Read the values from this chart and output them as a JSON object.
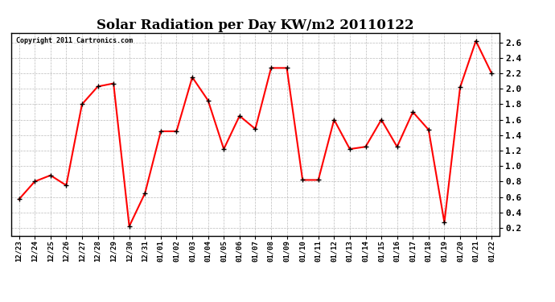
{
  "dates": [
    "12/23",
    "12/24",
    "12/25",
    "12/26",
    "12/27",
    "12/28",
    "12/29",
    "12/30",
    "12/31",
    "01/01",
    "01/02",
    "01/03",
    "01/04",
    "01/05",
    "01/06",
    "01/07",
    "01/08",
    "01/09",
    "01/10",
    "01/11",
    "01/12",
    "01/13",
    "01/14",
    "01/15",
    "01/16",
    "01/17",
    "01/18",
    "01/19",
    "01/20",
    "01/21",
    "01/22"
  ],
  "values": [
    0.57,
    0.8,
    0.88,
    0.75,
    1.8,
    2.03,
    2.07,
    0.22,
    0.65,
    1.45,
    1.45,
    2.15,
    1.85,
    1.22,
    1.65,
    1.48,
    2.27,
    2.27,
    0.82,
    0.82,
    1.6,
    1.22,
    1.25,
    1.6,
    1.25,
    1.7,
    1.47,
    0.27,
    2.02,
    2.62,
    2.2
  ],
  "title": "Solar Radiation per Day KW/m2 20110122",
  "copyright": "Copyright 2011 Cartronics.com",
  "line_color": "#ff0000",
  "marker_color": "#000000",
  "bg_color": "#ffffff",
  "grid_color": "#bbbbbb",
  "ylim_min": 0.1,
  "ylim_max": 2.72,
  "yticks": [
    0.2,
    0.4,
    0.6,
    0.8,
    1.0,
    1.2,
    1.4,
    1.6,
    1.8,
    2.0,
    2.2,
    2.4,
    2.6
  ]
}
